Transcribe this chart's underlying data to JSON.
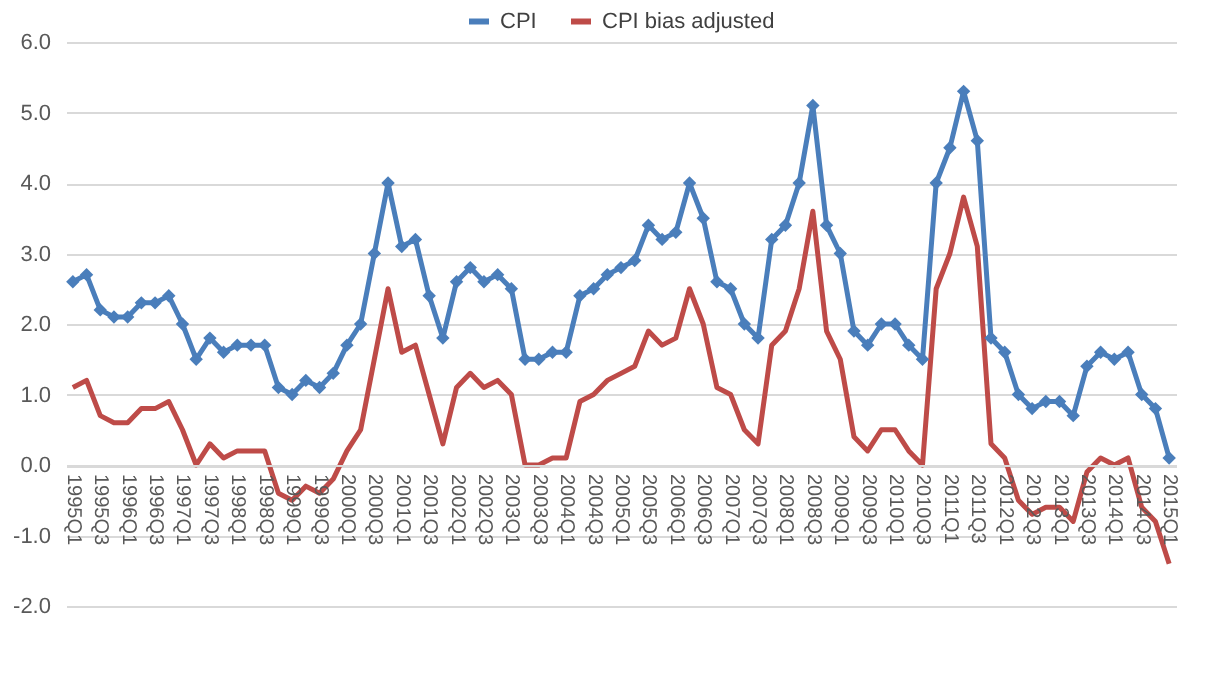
{
  "chart_data": {
    "type": "line",
    "categories": [
      "1995Q1",
      null,
      "1995Q3",
      null,
      "1996Q1",
      null,
      "1996Q3",
      null,
      "1997Q1",
      null,
      "1997Q3",
      null,
      "1998Q1",
      null,
      "1998Q3",
      null,
      "1999Q1",
      null,
      "1999Q3",
      null,
      "2000Q1",
      null,
      "2000Q3",
      null,
      "2001Q1",
      null,
      "2001Q3",
      null,
      "2002Q1",
      null,
      "2002Q3",
      null,
      "2003Q1",
      null,
      "2003Q3",
      null,
      "2004Q1",
      null,
      "2004Q3",
      null,
      "2005Q1",
      null,
      "2005Q3",
      null,
      "2006Q1",
      null,
      "2006Q3",
      null,
      "2007Q1",
      null,
      "2007Q3",
      null,
      "2008Q1",
      null,
      "2008Q3",
      null,
      "2009Q1",
      null,
      "2009Q3",
      null,
      "2010Q1",
      null,
      "2010Q3",
      null,
      "2011Q1",
      null,
      "2011Q3",
      null,
      "2012Q1",
      null,
      "2012Q3",
      null,
      "2013Q1",
      null,
      "2013Q3",
      null,
      "2014Q1",
      null,
      "2014Q3",
      null,
      "2015Q1"
    ],
    "series": [
      {
        "name": "CPI",
        "color": "#4a7ebb",
        "marker": "diamond",
        "values": [
          2.6,
          2.7,
          2.2,
          2.1,
          2.1,
          2.3,
          2.3,
          2.4,
          2.0,
          1.5,
          1.8,
          1.6,
          1.7,
          1.7,
          1.7,
          1.1,
          1.0,
          1.2,
          1.1,
          1.3,
          1.7,
          2.0,
          3.0,
          4.0,
          3.1,
          3.2,
          2.4,
          1.8,
          2.6,
          2.8,
          2.6,
          2.7,
          2.5,
          1.5,
          1.5,
          1.6,
          1.6,
          2.4,
          2.5,
          2.7,
          2.8,
          2.9,
          3.4,
          3.2,
          3.3,
          4.0,
          3.5,
          2.6,
          2.5,
          2.0,
          1.8,
          3.2,
          3.4,
          4.0,
          5.1,
          3.4,
          3.0,
          1.9,
          1.7,
          2.0,
          2.0,
          1.7,
          1.5,
          4.0,
          4.5,
          5.3,
          4.6,
          1.8,
          1.6,
          1.0,
          0.8,
          0.9,
          0.9,
          0.7,
          1.4,
          1.6,
          1.5,
          1.6,
          1.0,
          0.8,
          0.1
        ]
      },
      {
        "name": "CPI bias adjusted",
        "color": "#be4b48",
        "marker": "none",
        "values": [
          1.1,
          1.2,
          0.7,
          0.6,
          0.6,
          0.8,
          0.8,
          0.9,
          0.5,
          0.0,
          0.3,
          0.1,
          0.2,
          0.2,
          0.2,
          -0.4,
          -0.5,
          -0.3,
          -0.4,
          -0.2,
          0.2,
          0.5,
          1.5,
          2.5,
          1.6,
          1.7,
          1.0,
          0.3,
          1.1,
          1.3,
          1.1,
          1.2,
          1.0,
          0.0,
          0.0,
          0.1,
          0.1,
          0.9,
          1.0,
          1.2,
          1.3,
          1.4,
          1.9,
          1.7,
          1.8,
          2.5,
          2.0,
          1.1,
          1.0,
          0.5,
          0.3,
          1.7,
          1.9,
          2.5,
          3.6,
          1.9,
          1.5,
          0.4,
          0.2,
          0.5,
          0.5,
          0.2,
          0.0,
          2.5,
          3.0,
          3.8,
          3.1,
          0.3,
          0.1,
          -0.5,
          -0.7,
          -0.6,
          -0.6,
          -0.8,
          -0.1,
          0.1,
          0.0,
          0.1,
          -0.6,
          -0.8,
          -1.4
        ]
      }
    ],
    "ylim": [
      -2,
      6
    ],
    "yticks": [
      {
        "value": -2,
        "label": "-2.0"
      },
      {
        "value": -1,
        "label": "-1.0"
      },
      {
        "value": 0,
        "label": "0.0"
      },
      {
        "value": 1,
        "label": "1.0"
      },
      {
        "value": 2,
        "label": "2.0"
      },
      {
        "value": 3,
        "label": "3.0"
      },
      {
        "value": 4,
        "label": "4.0"
      },
      {
        "value": 5,
        "label": "5.0"
      },
      {
        "value": 6,
        "label": "6.0"
      }
    ],
    "grid": "y",
    "legend": "top",
    "line_style": "solid"
  }
}
